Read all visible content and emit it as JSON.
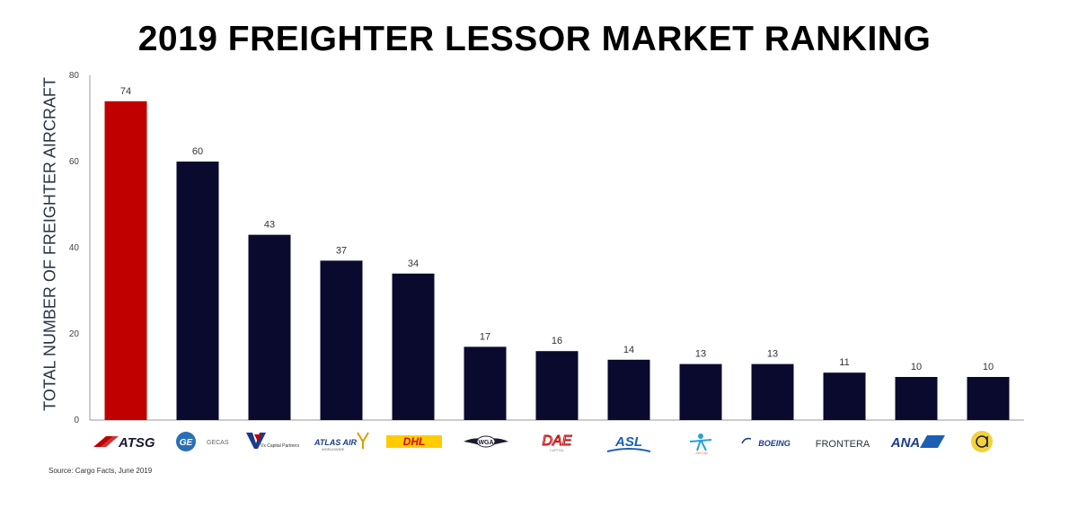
{
  "chart_data": {
    "type": "bar",
    "title": "2019 FREIGHTER LESSOR MARKET RANKING",
    "ylabel": "TOTAL NUMBER OF FREIGHTER AIRCRAFT",
    "xlabel": "",
    "ylim": [
      0,
      80
    ],
    "yticks": [
      "0",
      "20",
      "40",
      "60",
      "80"
    ],
    "yticks_values": [
      0,
      20,
      40,
      60,
      80
    ],
    "categories": [
      "ATSG",
      "GE GECAS",
      "Vx Capital Partners",
      "ATLAS AIR",
      "DHL",
      "WGA",
      "DAE",
      "ASL",
      "AerCap",
      "BOEING",
      "FRONTERA",
      "ANA",
      "Amedeo"
    ],
    "values": [
      74,
      60,
      43,
      37,
      34,
      17,
      16,
      14,
      13,
      13,
      11,
      10,
      10
    ],
    "value_labels": [
      "74",
      "60",
      "43",
      "37",
      "34",
      "17",
      "16",
      "14",
      "13",
      "13",
      "11",
      "10",
      "10"
    ],
    "highlight_color": "#c00000",
    "bar_color": "#0a0a2e",
    "grid": false,
    "source": "Source: Cargo Facts, June 2019"
  },
  "logos": {
    "atsg": "ATSG",
    "ge": "GE",
    "gecas": "GECAS",
    "vx": "Vx Capital Partners",
    "atlas": "ATLAS AIR",
    "atlas_sub": "WORLDWIDE",
    "dhl": "DHL",
    "wga": "WGA",
    "dae": "DAE",
    "dae_sub": "CAPITAL",
    "asl": "ASL",
    "aercap": "AerCap",
    "boeing": "BOEING",
    "frontera": "FRONTERA",
    "ana": "ANA"
  }
}
